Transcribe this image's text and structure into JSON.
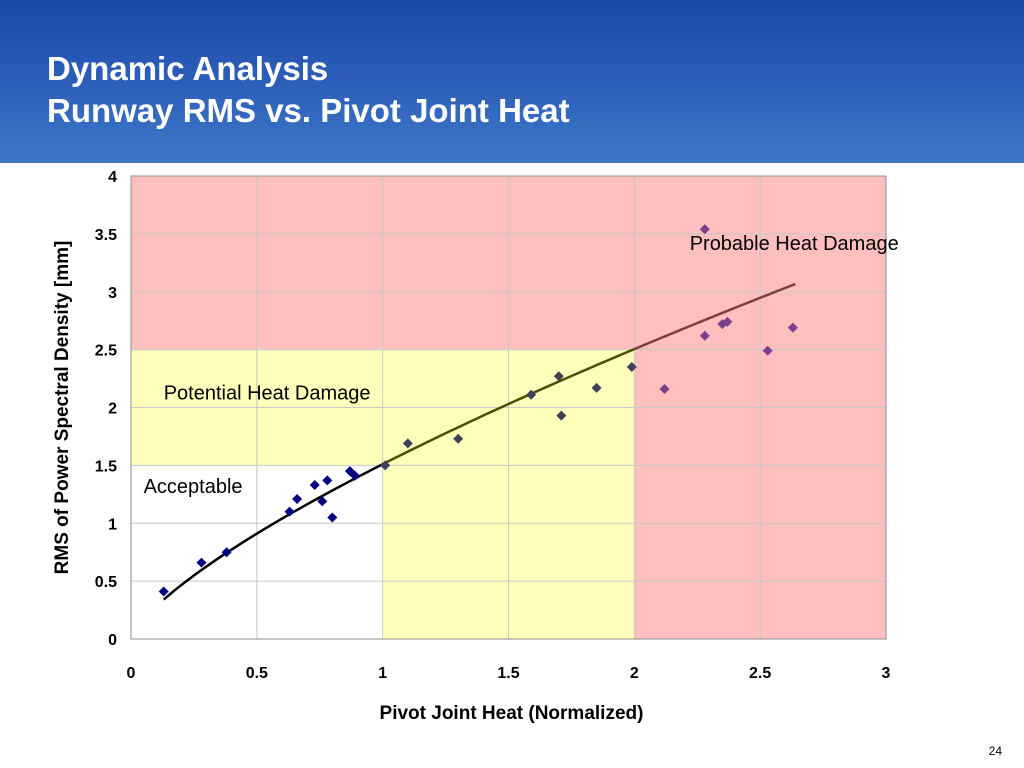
{
  "slide": {
    "title_line1": "Dynamic Analysis",
    "title_line2": "Runway RMS vs. Pivot Joint Heat",
    "page_number": "24"
  },
  "colors": {
    "header_blue": "#2a5cb8",
    "zone_probable": "#ffbfbf",
    "zone_potential": "#ffffbb",
    "zone_acceptable": "#ffffff",
    "marker_acceptable": "#000080",
    "marker_potential": "#3f3f5a",
    "marker_probable": "#7b3f8e",
    "trend_acceptable": "#000000",
    "trend_potential": "#4d4d00",
    "trend_probable": "#7f3f3f"
  },
  "chart_data": {
    "type": "scatter",
    "title": "",
    "xlabel": "Pivot Joint Heat (Normalized)",
    "ylabel": "RMS of Power Spectral Density [mm]",
    "xlim": [
      0,
      3
    ],
    "ylim": [
      0,
      4
    ],
    "xticks": [
      "0",
      "0.5",
      "1",
      "1.5",
      "2",
      "2.5",
      "3"
    ],
    "yticks": [
      "0",
      "0.5",
      "1",
      "1.5",
      "2",
      "2.5",
      "3",
      "3.5",
      "4"
    ],
    "grid": true,
    "legend": "none",
    "regions": [
      {
        "label": "Probable Heat Damage",
        "x": [
          0,
          3
        ],
        "y": [
          2.5,
          4
        ]
      },
      {
        "label": "Probable Heat Damage",
        "x": [
          2,
          3
        ],
        "y": [
          0,
          2.5
        ]
      },
      {
        "label": "Potential Heat Damage",
        "x": [
          0,
          2
        ],
        "y": [
          1.5,
          2.5
        ]
      },
      {
        "label": "Potential Heat Damage",
        "x": [
          1,
          2
        ],
        "y": [
          0,
          1.5
        ]
      },
      {
        "label": "Acceptable",
        "x": [
          0,
          1
        ],
        "y": [
          0,
          1.5
        ]
      }
    ],
    "annotations": [
      {
        "text": "Probable Heat Damage",
        "x": 2.22,
        "y": 3.36
      },
      {
        "text": "Potential Heat Damage",
        "x": 0.13,
        "y": 2.07
      },
      {
        "text": "Acceptable",
        "x": 0.05,
        "y": 1.26
      }
    ],
    "series": [
      {
        "zone": "acceptable",
        "points": [
          [
            0.13,
            0.41
          ],
          [
            0.28,
            0.66
          ],
          [
            0.38,
            0.75
          ],
          [
            0.63,
            1.1
          ],
          [
            0.66,
            1.21
          ],
          [
            0.73,
            1.33
          ],
          [
            0.76,
            1.19
          ],
          [
            0.78,
            1.37
          ],
          [
            0.8,
            1.05
          ],
          [
            0.87,
            1.45
          ],
          [
            0.89,
            1.41
          ]
        ]
      },
      {
        "zone": "potential",
        "points": [
          [
            1.01,
            1.5
          ],
          [
            1.1,
            1.69
          ],
          [
            1.3,
            1.73
          ],
          [
            1.59,
            2.11
          ],
          [
            1.7,
            2.27
          ],
          [
            1.71,
            1.93
          ],
          [
            1.85,
            2.17
          ],
          [
            1.99,
            2.35
          ]
        ]
      },
      {
        "zone": "probable",
        "points": [
          [
            2.12,
            2.16
          ],
          [
            2.28,
            3.54
          ],
          [
            2.28,
            2.62
          ],
          [
            2.35,
            2.72
          ],
          [
            2.37,
            2.74
          ],
          [
            2.53,
            2.49
          ],
          [
            2.63,
            2.69
          ]
        ]
      }
    ],
    "trendline": {
      "type": "power",
      "a": 1.51,
      "b": 0.73,
      "segments": [
        {
          "zone": "acceptable",
          "x": [
            0.13,
            1.0
          ]
        },
        {
          "zone": "potential",
          "x": [
            1.0,
            2.0
          ]
        },
        {
          "zone": "probable",
          "x": [
            2.0,
            2.64
          ]
        }
      ]
    }
  }
}
